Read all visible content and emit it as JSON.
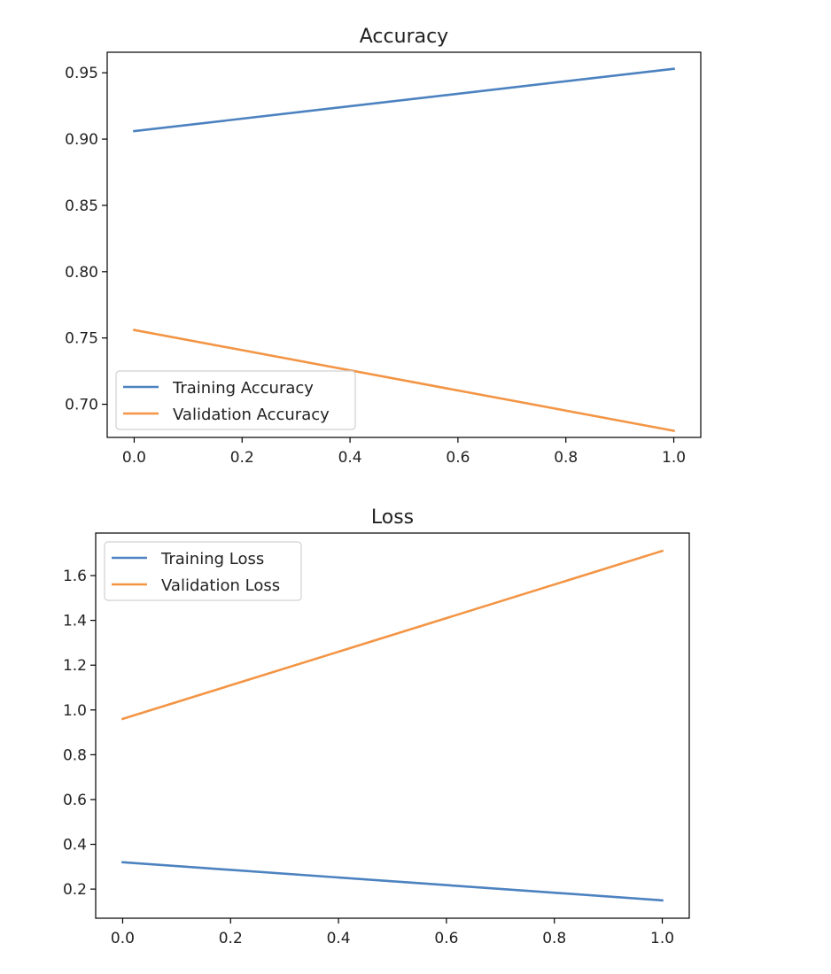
{
  "chart_data": [
    {
      "type": "line",
      "title": "Accuracy",
      "xlabel": "",
      "ylabel": "",
      "xlim": [
        -0.05,
        1.05
      ],
      "ylim": [
        0.675,
        0.9655
      ],
      "x_ticks": [
        0.0,
        0.2,
        0.4,
        0.6,
        0.8,
        1.0
      ],
      "x_tick_labels": [
        "0.0",
        "0.2",
        "0.4",
        "0.6",
        "0.8",
        "1.0"
      ],
      "y_ticks": [
        0.7,
        0.75,
        0.8,
        0.85,
        0.9,
        0.95
      ],
      "y_tick_labels": [
        "0.70",
        "0.75",
        "0.80",
        "0.85",
        "0.90",
        "0.95"
      ],
      "grid": false,
      "legend_position": "lower-left",
      "series": [
        {
          "name": "Training Accuracy",
          "color": "#4c82c0",
          "x": [
            0,
            1
          ],
          "values": [
            0.906,
            0.953
          ]
        },
        {
          "name": "Validation Accuracy",
          "color": "#f39545",
          "x": [
            0,
            1
          ],
          "values": [
            0.756,
            0.68
          ]
        }
      ]
    },
    {
      "type": "line",
      "title": "Loss",
      "xlabel": "",
      "ylabel": "",
      "xlim": [
        -0.05,
        1.05
      ],
      "ylim": [
        0.07,
        1.79
      ],
      "x_ticks": [
        0.0,
        0.2,
        0.4,
        0.6,
        0.8,
        1.0
      ],
      "x_tick_labels": [
        "0.0",
        "0.2",
        "0.4",
        "0.6",
        "0.8",
        "1.0"
      ],
      "y_ticks": [
        0.2,
        0.4,
        0.6,
        0.8,
        1.0,
        1.2,
        1.4,
        1.6
      ],
      "y_tick_labels": [
        "0.2",
        "0.4",
        "0.6",
        "0.8",
        "1.0",
        "1.2",
        "1.4",
        "1.6"
      ],
      "grid": false,
      "legend_position": "upper-left",
      "series": [
        {
          "name": "Training Loss",
          "color": "#4c82c0",
          "x": [
            0,
            1
          ],
          "values": [
            0.32,
            0.15
          ]
        },
        {
          "name": "Validation Loss",
          "color": "#f39545",
          "x": [
            0,
            1
          ],
          "values": [
            0.96,
            1.71
          ]
        }
      ]
    }
  ]
}
